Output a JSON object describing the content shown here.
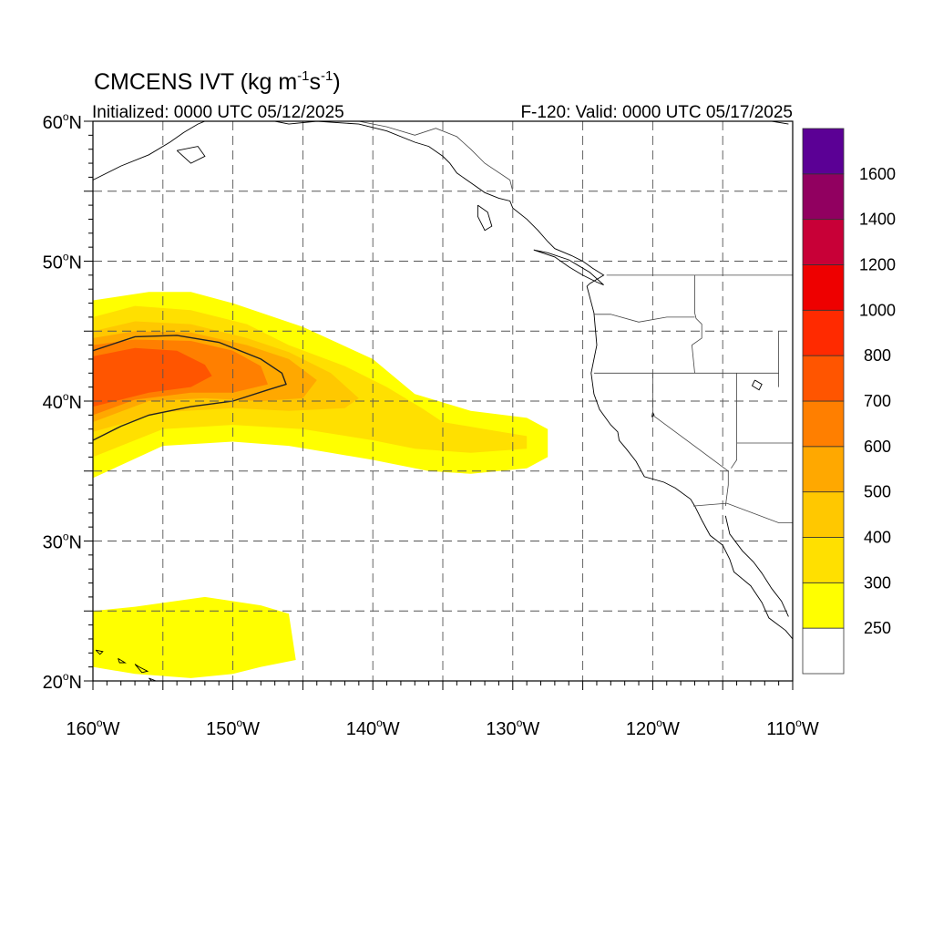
{
  "header": {
    "title_main": "CMCENS IVT (kg m",
    "title_sup1": "-1",
    "title_mid": "s",
    "title_sup2": "-1",
    "title_end": ")",
    "initialized": "Initialized: 0000 UTC 05/12/2025",
    "valid": "F-120: Valid: 0000 UTC 05/17/2025"
  },
  "map": {
    "lon_range": [
      -160,
      -110
    ],
    "lat_range": [
      20,
      60
    ],
    "lon_ticks": [
      {
        "deg": "160",
        "hemi": "W",
        "value": -160
      },
      {
        "deg": "150",
        "hemi": "W",
        "value": -150
      },
      {
        "deg": "140",
        "hemi": "W",
        "value": -140
      },
      {
        "deg": "130",
        "hemi": "W",
        "value": -130
      },
      {
        "deg": "120",
        "hemi": "W",
        "value": -120
      },
      {
        "deg": "110",
        "hemi": "W",
        "value": -110
      }
    ],
    "lat_ticks": [
      {
        "deg": "60",
        "hemi": "N",
        "value": 60
      },
      {
        "deg": "50",
        "hemi": "N",
        "value": 50
      },
      {
        "deg": "40",
        "hemi": "N",
        "value": 40
      },
      {
        "deg": "30",
        "hemi": "N",
        "value": 30
      },
      {
        "deg": "20",
        "hemi": "N",
        "value": 20
      }
    ],
    "gridlines": "dashed every 5 degrees"
  },
  "colorbar": {
    "levels": [
      250,
      300,
      400,
      500,
      600,
      700,
      800,
      1000,
      1200,
      1400,
      1600
    ],
    "labels": [
      "250",
      "300",
      "400",
      "500",
      "600",
      "700",
      "800",
      "1000",
      "1200",
      "1400",
      "1600"
    ],
    "colors": [
      "#ffffff",
      "#ffff00",
      "#ffe000",
      "#ffc800",
      "#ffa800",
      "#ff7f00",
      "#ff5500",
      "#ff2a00",
      "#ee0000",
      "#c80037",
      "#910060",
      "#5b0095"
    ]
  },
  "ivt_regions": [
    {
      "level": 250,
      "lons": [
        -160,
        -160,
        -156,
        -153,
        -150,
        -145,
        -140,
        -137,
        -133,
        -129,
        -127.5,
        -127.5,
        -129,
        -133,
        -136,
        -140,
        -143,
        -146,
        -150,
        -155,
        -160
      ],
      "lats": [
        46.8,
        47.2,
        47.8,
        47.8,
        47.0,
        45.3,
        43.0,
        40.5,
        39.3,
        38.8,
        38.0,
        36.0,
        35.2,
        34.8,
        35.0,
        35.8,
        36.3,
        36.8,
        37.1,
        36.8,
        34.5
      ]
    },
    {
      "level": 250,
      "lons": [
        -160,
        -160,
        -157,
        -152,
        -148,
        -146,
        -145.5,
        -148,
        -150,
        -153,
        -157,
        -160
      ],
      "lats": [
        22.0,
        25.0,
        25.3,
        26.0,
        25.4,
        24.8,
        21.5,
        21.0,
        20.5,
        20.2,
        20.5,
        21.0
      ]
    },
    {
      "level": 300,
      "lons": [
        -160,
        -157,
        -153,
        -149,
        -146,
        -142,
        -139,
        -136.5,
        -135,
        -132,
        -129,
        -129,
        -133,
        -137,
        -140,
        -145,
        -150,
        -155,
        -160
      ],
      "lats": [
        46.0,
        46.8,
        46.5,
        45.5,
        44.0,
        42.5,
        41.0,
        39.5,
        38.5,
        38.0,
        37.5,
        36.6,
        36.3,
        36.6,
        37.2,
        38.0,
        38.3,
        38.0,
        36.0
      ]
    },
    {
      "level": 400,
      "lons": [
        -160,
        -157,
        -153,
        -149,
        -146,
        -143,
        -141,
        -142,
        -146,
        -150,
        -155,
        -160
      ],
      "lats": [
        45.0,
        45.7,
        45.5,
        44.5,
        43.5,
        42.0,
        40.2,
        39.5,
        39.3,
        39.5,
        39.2,
        37.8
      ]
    },
    {
      "level": 500,
      "lons": [
        -160,
        -157,
        -153,
        -149,
        -146,
        -144,
        -145,
        -148,
        -152,
        -156,
        -160
      ],
      "lats": [
        44.5,
        45.0,
        44.9,
        44.0,
        43.0,
        41.5,
        40.2,
        40.0,
        40.2,
        40.0,
        38.5
      ]
    },
    {
      "level": 600,
      "lons": [
        -160,
        -157,
        -153,
        -150,
        -148,
        -147.5,
        -150,
        -153,
        -157,
        -160
      ],
      "lats": [
        44.0,
        44.4,
        44.3,
        43.6,
        42.5,
        41.2,
        40.6,
        40.6,
        40.1,
        39.0
      ]
    },
    {
      "level": 700,
      "lons": [
        -160,
        -157,
        -154,
        -152,
        -151.5,
        -153,
        -156,
        -160
      ],
      "lats": [
        43.2,
        43.8,
        43.6,
        42.6,
        41.8,
        41.0,
        40.6,
        39.6
      ]
    }
  ],
  "ivt_contour": {
    "level": 500,
    "lons": [
      -160,
      -157,
      -154,
      -151,
      -148,
      -146.5,
      -146.2,
      -147.5,
      -150,
      -153,
      -156,
      -158,
      -160
    ],
    "lats": [
      43.6,
      44.6,
      44.7,
      44.2,
      43.0,
      42.0,
      41.2,
      40.8,
      40.0,
      39.6,
      39.0,
      38.2,
      37.2
    ]
  },
  "coastlines": [
    [
      [
        -147,
        60
      ],
      [
        -146,
        59.8
      ],
      [
        -144,
        60
      ],
      [
        -141,
        59.8
      ],
      [
        -139,
        59.3
      ],
      [
        -137,
        58.5
      ],
      [
        -136,
        58.2
      ],
      [
        -135,
        57.5
      ],
      [
        -134.5,
        57
      ],
      [
        -134,
        56.3
      ],
      [
        -133,
        55.6
      ],
      [
        -132,
        54.9
      ],
      [
        -131,
        54.5
      ],
      [
        -130.2,
        54.3
      ],
      [
        -130,
        53.8
      ],
      [
        -129,
        53
      ],
      [
        -128.2,
        52.2
      ],
      [
        -127.5,
        51.4
      ],
      [
        -127,
        50.9
      ],
      [
        -125.8,
        50.4
      ],
      [
        -125,
        50
      ],
      [
        -124.3,
        49.5
      ],
      [
        -123.5,
        49
      ],
      [
        -124.5,
        48.4
      ],
      [
        -124.7,
        48.2
      ],
      [
        -124.2,
        46.3
      ],
      [
        -124,
        44
      ],
      [
        -124.4,
        42
      ],
      [
        -124.2,
        40.5
      ],
      [
        -123.8,
        39.4
      ],
      [
        -123,
        38.3
      ],
      [
        -122.5,
        37.8
      ],
      [
        -122.4,
        37.2
      ],
      [
        -121.9,
        36.6
      ],
      [
        -121.2,
        35.7
      ],
      [
        -120.6,
        34.6
      ],
      [
        -119.2,
        34.2
      ],
      [
        -118.4,
        33.8
      ],
      [
        -117.3,
        33
      ],
      [
        -117,
        32.5
      ],
      [
        -116.5,
        31.5
      ],
      [
        -115.9,
        30.4
      ],
      [
        -115,
        29.7
      ],
      [
        -114.5,
        28.7
      ],
      [
        -114.2,
        27.8
      ],
      [
        -113,
        26.8
      ],
      [
        -112.2,
        25.6
      ],
      [
        -111.7,
        24.5
      ],
      [
        -110.5,
        23.6
      ],
      [
        -110,
        23
      ]
    ],
    [
      [
        -114.8,
        31.8
      ],
      [
        -114.5,
        30.5
      ],
      [
        -113.6,
        29.3
      ],
      [
        -112.8,
        28.5
      ],
      [
        -112.2,
        27.7
      ],
      [
        -111.5,
        26.6
      ],
      [
        -110.8,
        25.7
      ],
      [
        -110.3,
        24.6
      ]
    ],
    [
      [
        -160,
        55.8
      ],
      [
        -158,
        56.8
      ],
      [
        -156,
        57.6
      ],
      [
        -154.5,
        58.5
      ],
      [
        -153.5,
        59.2
      ],
      [
        -152.5,
        59.8
      ],
      [
        -152,
        60
      ]
    ],
    [
      [
        -154,
        57.9
      ],
      [
        -152.5,
        58.2
      ],
      [
        -152,
        57.5
      ],
      [
        -153,
        57
      ],
      [
        -154,
        57.9
      ]
    ],
    [
      [
        -128.5,
        50.8
      ],
      [
        -127,
        50.3
      ],
      [
        -126,
        49.6
      ],
      [
        -125,
        49
      ],
      [
        -124,
        48.5
      ],
      [
        -123.5,
        48.3
      ],
      [
        -124.5,
        49.2
      ],
      [
        -126,
        50.1
      ],
      [
        -127.5,
        50.6
      ],
      [
        -128.5,
        50.8
      ]
    ],
    [
      [
        -132.5,
        54
      ],
      [
        -131.8,
        53.5
      ],
      [
        -131.5,
        52.5
      ],
      [
        -132,
        52.2
      ],
      [
        -132.5,
        53.2
      ],
      [
        -132.5,
        54
      ]
    ],
    [
      [
        -159.8,
        22.2
      ],
      [
        -159.3,
        22.1
      ],
      [
        -159.5,
        21.9
      ],
      [
        -159.8,
        22.2
      ]
    ],
    [
      [
        -158.2,
        21.6
      ],
      [
        -157.7,
        21.3
      ],
      [
        -158.1,
        21.3
      ],
      [
        -158.2,
        21.6
      ]
    ],
    [
      [
        -157,
        21.2
      ],
      [
        -156.7,
        21.0
      ],
      [
        -156.1,
        20.7
      ],
      [
        -156.5,
        20.6
      ],
      [
        -157,
        21.2
      ]
    ],
    [
      [
        -156,
        20.2
      ],
      [
        -155,
        19.8
      ],
      [
        -155.8,
        20.0
      ],
      [
        -156,
        20.2
      ]
    ],
    [
      [
        -111.5,
        60
      ],
      [
        -110.3,
        59.8
      ]
    ]
  ],
  "borders": [
    [
      [
        -141,
        60
      ],
      [
        -139,
        59.6
      ],
      [
        -137,
        59
      ],
      [
        -135.5,
        59.5
      ],
      [
        -134,
        58.9
      ],
      [
        -133,
        58
      ],
      [
        -132,
        57
      ],
      [
        -130.2,
        55.8
      ],
      [
        -130,
        55
      ]
    ],
    [
      [
        -123.3,
        49
      ],
      [
        -110,
        49
      ]
    ],
    [
      [
        -117,
        49
      ],
      [
        -117,
        46.3
      ],
      [
        -116.9,
        45.9
      ],
      [
        -116.5,
        45.5
      ],
      [
        -116.5,
        44.5
      ],
      [
        -117.2,
        44
      ],
      [
        -117,
        42
      ]
    ],
    [
      [
        -124.2,
        46.2
      ],
      [
        -123,
        46.2
      ],
      [
        -121,
        45.65
      ],
      [
        -119,
        46
      ],
      [
        -117,
        46
      ]
    ],
    [
      [
        -124.2,
        42
      ],
      [
        -111,
        42
      ]
    ],
    [
      [
        -120,
        42
      ],
      [
        -120,
        39
      ],
      [
        -114.6,
        35
      ],
      [
        -114.6,
        34
      ],
      [
        -114.8,
        32.5
      ]
    ],
    [
      [
        -114,
        42
      ],
      [
        -114,
        36.2
      ],
      [
        -114,
        35.8
      ],
      [
        -114.4,
        35.2
      ]
    ],
    [
      [
        -111,
        45
      ],
      [
        -111,
        41
      ]
    ],
    [
      [
        -117.1,
        32.5
      ],
      [
        -114.7,
        32.7
      ],
      [
        -111,
        31.3
      ],
      [
        -110,
        31.3
      ]
    ],
    [
      [
        -114,
        37
      ],
      [
        -110,
        37
      ]
    ]
  ],
  "lakes": [
    [
      [
        -112.7,
        41.5
      ],
      [
        -112.2,
        41.2
      ],
      [
        -112.4,
        40.8
      ],
      [
        -112.9,
        41.1
      ],
      [
        -112.7,
        41.5
      ]
    ],
    [
      [
        -120,
        39.2
      ],
      [
        -119.9,
        39.0
      ],
      [
        -120.05,
        38.9
      ],
      [
        -120,
        39.2
      ]
    ]
  ]
}
